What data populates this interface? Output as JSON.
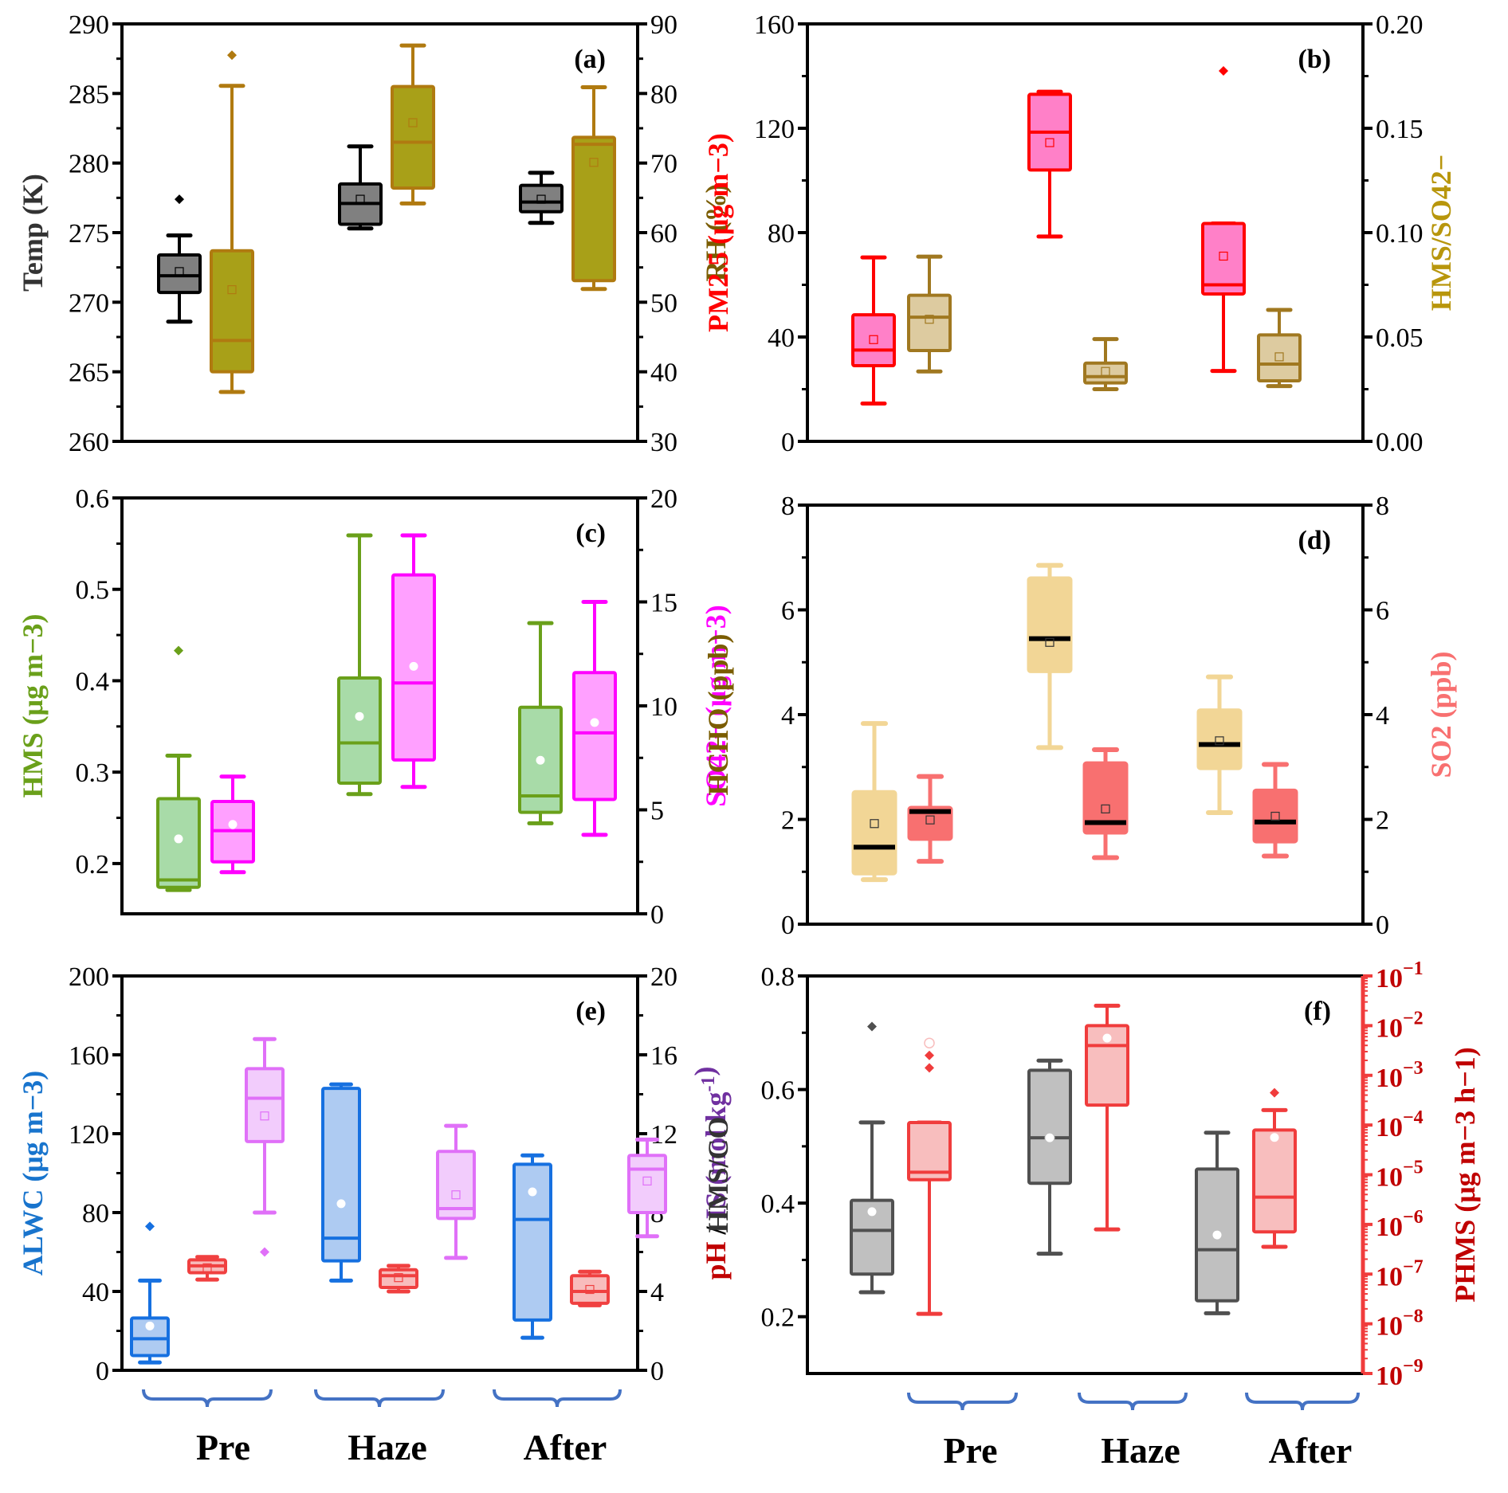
{
  "figure": {
    "group_labels": [
      "Pre",
      "Haze",
      "After"
    ],
    "brace_color": "#4472C4"
  },
  "chart_data": [
    {
      "id": "a",
      "panel_label": "(a)",
      "type": "box",
      "categories": [
        "Pre",
        "Haze",
        "After"
      ],
      "left_axis": {
        "title": "Temp (K)",
        "title_color": "#333333",
        "range": [
          260,
          290
        ],
        "ticks": [
          260,
          265,
          270,
          275,
          280,
          285,
          290
        ]
      },
      "right_axis": {
        "title": "RH (%)",
        "title_color": "#7A5C00",
        "range": [
          30,
          90
        ],
        "ticks": [
          30,
          40,
          50,
          60,
          70,
          80,
          90
        ]
      },
      "series": [
        {
          "name": "Temp",
          "axis": "left",
          "stroke": "#000000",
          "fill": "#808080",
          "mean_marker": "square",
          "boxes": [
            {
              "min": 268.6,
              "q1": 270.7,
              "median": 271.9,
              "q3": 273.4,
              "max": 274.8,
              "mean": 272.2,
              "outliers": [
                277.4
              ]
            },
            {
              "min": 275.3,
              "q1": 275.6,
              "median": 277.1,
              "q3": 278.5,
              "max": 281.2,
              "mean": 277.4,
              "outliers": []
            },
            {
              "min": 275.7,
              "q1": 276.5,
              "median": 277.2,
              "q3": 278.4,
              "max": 279.3,
              "mean": 277.4,
              "outliers": []
            }
          ]
        },
        {
          "name": "RH",
          "axis": "right",
          "stroke": "#B07A10",
          "fill": "#A8A018",
          "mean_marker": "square",
          "boxes": [
            {
              "min": 37.1,
              "q1": 40.0,
              "median": 44.5,
              "q3": 57.4,
              "max": 81.1,
              "mean": 51.8,
              "outliers": [
                85.5
              ]
            },
            {
              "min": 64.2,
              "q1": 66.4,
              "median": 73.0,
              "q3": 81.0,
              "max": 86.9,
              "mean": 75.8,
              "outliers": []
            },
            {
              "min": 51.9,
              "q1": 53.1,
              "median": 72.7,
              "q3": 73.7,
              "max": 80.9,
              "mean": 70.1,
              "outliers": []
            }
          ]
        }
      ]
    },
    {
      "id": "b",
      "panel_label": "(b)",
      "type": "box",
      "categories": [
        "Pre",
        "Haze",
        "After"
      ],
      "left_axis": {
        "title": "PM2.5 (μg m−3)",
        "title_color": "#FF0000",
        "range": [
          0,
          160
        ],
        "ticks": [
          0,
          40,
          80,
          120,
          160
        ]
      },
      "right_axis": {
        "title": "HMS/SO42−",
        "title_color": "#B8960C",
        "range": [
          0,
          0.2
        ],
        "ticks": [
          "0.00",
          "0.05",
          "0.10",
          "0.15",
          "0.20"
        ]
      },
      "series": [
        {
          "name": "PM2.5",
          "axis": "left",
          "stroke": "#FF0000",
          "fill": "#FF80C8",
          "mean_marker": "square",
          "boxes": [
            {
              "min": 14.5,
              "q1": 29.0,
              "median": 35.0,
              "q3": 48.5,
              "max": 70.5,
              "mean": 39.0,
              "outliers": []
            },
            {
              "min": 78.5,
              "q1": 104.0,
              "median": 118.5,
              "q3": 133.0,
              "max": 134.0,
              "mean": 114.5,
              "outliers": []
            },
            {
              "min": 27.0,
              "q1": 56.5,
              "median": 60.0,
              "q3": 83.5,
              "max": 83.5,
              "mean": 71.0,
              "outliers": [
                142.0
              ]
            }
          ]
        },
        {
          "name": "HMS/SO4",
          "axis": "right",
          "stroke": "#A07820",
          "fill": "#DDCBA0",
          "mean_marker": "square",
          "boxes": [
            {
              "min": 0.0335,
              "q1": 0.0435,
              "median": 0.0595,
              "q3": 0.07,
              "max": 0.0885,
              "mean": 0.0585,
              "outliers": []
            },
            {
              "min": 0.025,
              "q1": 0.028,
              "median": 0.031,
              "q3": 0.0375,
              "max": 0.049,
              "mean": 0.0335,
              "outliers": []
            },
            {
              "min": 0.0265,
              "q1": 0.029,
              "median": 0.037,
              "q3": 0.051,
              "max": 0.063,
              "mean": 0.0405,
              "outliers": []
            }
          ]
        }
      ]
    },
    {
      "id": "c",
      "panel_label": "(c)",
      "type": "box",
      "categories": [
        "Pre",
        "Haze",
        "After"
      ],
      "left_axis": {
        "title": "HMS (μg m−3)",
        "title_color": "#6AA01A",
        "range": [
          0.145,
          0.6
        ],
        "ticks": [
          "0.2",
          "0.3",
          "0.4",
          "0.5",
          "0.6"
        ]
      },
      "right_axis": {
        "title": "SO42− (μg m−3)",
        "title_color": "#FF00FF",
        "range": [
          0,
          20
        ],
        "ticks": [
          0,
          5,
          10,
          15,
          20
        ]
      },
      "series": [
        {
          "name": "HMS",
          "axis": "left",
          "stroke": "#6AA01A",
          "fill": "#A8DBA8",
          "mean_marker": "circle",
          "boxes": [
            {
              "min": 0.171,
              "q1": 0.174,
              "median": 0.182,
              "q3": 0.271,
              "max": 0.318,
              "mean": 0.227,
              "outliers": [
                0.433
              ]
            },
            {
              "min": 0.276,
              "q1": 0.288,
              "median": 0.332,
              "q3": 0.403,
              "max": 0.559,
              "mean": 0.361,
              "outliers": []
            },
            {
              "min": 0.244,
              "q1": 0.256,
              "median": 0.274,
              "q3": 0.371,
              "max": 0.463,
              "mean": 0.313,
              "outliers": []
            }
          ]
        },
        {
          "name": "SO4",
          "axis": "right",
          "stroke": "#FF00FF",
          "fill": "#FFA0FF",
          "mean_marker": "circle",
          "boxes": [
            {
              "min": 2.0,
              "q1": 2.5,
              "median": 4.0,
              "q3": 5.4,
              "max": 6.6,
              "mean": 4.3,
              "outliers": []
            },
            {
              "min": 6.1,
              "q1": 7.4,
              "median": 11.1,
              "q3": 16.3,
              "max": 18.2,
              "mean": 11.9,
              "outliers": []
            },
            {
              "min": 3.8,
              "q1": 5.5,
              "median": 8.7,
              "q3": 11.6,
              "max": 15.0,
              "mean": 9.2,
              "outliers": []
            }
          ]
        }
      ]
    },
    {
      "id": "d",
      "panel_label": "(d)",
      "type": "box",
      "categories": [
        "Pre",
        "Haze",
        "After"
      ],
      "left_axis": {
        "title": "HCHO (ppb)",
        "title_color": "#7A5C00",
        "range": [
          0,
          8
        ],
        "ticks": [
          0,
          2,
          4,
          6,
          8
        ]
      },
      "right_axis": {
        "title": "SO2 (ppb)",
        "title_color": "#F87070",
        "range": [
          0,
          8
        ],
        "ticks": [
          0,
          2,
          4,
          6,
          8
        ]
      },
      "series": [
        {
          "name": "HCHO",
          "axis": "left",
          "stroke": "#F2D696",
          "fill": "#F2D696",
          "median_color": "#000000",
          "mean_marker": "square",
          "boxes": [
            {
              "min": 0.85,
              "q1": 0.97,
              "median": 1.47,
              "q3": 2.52,
              "max": 3.83,
              "mean": 1.92,
              "outliers": []
            },
            {
              "min": 3.37,
              "q1": 4.83,
              "median": 5.45,
              "q3": 6.6,
              "max": 6.85,
              "mean": 5.38,
              "outliers": []
            },
            {
              "min": 2.13,
              "q1": 2.98,
              "median": 3.43,
              "q3": 4.08,
              "max": 4.72,
              "mean": 3.5,
              "outliers": []
            }
          ]
        },
        {
          "name": "SO2",
          "axis": "right",
          "stroke": "#F87070",
          "fill": "#F87070",
          "median_color": "#000000",
          "mean_marker": "square",
          "boxes": [
            {
              "min": 1.2,
              "q1": 1.63,
              "median": 2.15,
              "q3": 2.22,
              "max": 2.82,
              "mean": 1.99,
              "outliers": []
            },
            {
              "min": 1.27,
              "q1": 1.75,
              "median": 1.94,
              "q3": 3.07,
              "max": 3.33,
              "mean": 2.2,
              "outliers": []
            },
            {
              "min": 1.3,
              "q1": 1.58,
              "median": 1.95,
              "q3": 2.55,
              "max": 3.05,
              "mean": 2.06,
              "outliers": []
            }
          ]
        }
      ]
    },
    {
      "id": "e",
      "panel_label": "(e)",
      "type": "box",
      "categories": [
        "Pre",
        "Haze",
        "After"
      ],
      "left_axis": {
        "title": "ALWC (μg m−3)",
        "title_color": "#1874CD",
        "range": [
          0,
          200
        ],
        "ticks": [
          0,
          40,
          80,
          120,
          160,
          200
        ]
      },
      "right_axis": {
        "title": "pH / IS (mol kg-1)",
        "title_color": "#7030A0",
        "title_parts": [
          {
            "text": "pH",
            "color": "#C00000"
          },
          {
            "text": " / ",
            "color": "#000000"
          },
          {
            "text": "IS (mol kg",
            "color": "#7030A0"
          },
          {
            "text": "-1",
            "color": "#7030A0",
            "sup": true
          },
          {
            "text": ")",
            "color": "#7030A0"
          }
        ],
        "range": [
          0,
          20
        ],
        "ticks": [
          0,
          4,
          8,
          12,
          16,
          20
        ]
      },
      "series": [
        {
          "name": "ALWC",
          "axis": "left",
          "stroke": "#1670E0",
          "fill": "#AECBF2",
          "mean_marker": "circle",
          "boxes": [
            {
              "min": 4.0,
              "q1": 7.5,
              "median": 16.0,
              "q3": 26.5,
              "max": 45.5,
              "mean": 22.5,
              "outliers": [
                73.0
              ]
            },
            {
              "min": 45.5,
              "q1": 55.5,
              "median": 67.0,
              "q3": 143.0,
              "max": 145.0,
              "mean": 84.5,
              "outliers": []
            },
            {
              "min": 16.5,
              "q1": 25.5,
              "median": 76.5,
              "q3": 104.5,
              "max": 109.0,
              "mean": 90.5,
              "outliers": []
            }
          ]
        },
        {
          "name": "pH",
          "axis": "right",
          "stroke": "#F04040",
          "fill": "#F8BCBC",
          "mean_marker": "square",
          "boxes": [
            {
              "min": 4.6,
              "q1": 4.95,
              "median": 5.3,
              "q3": 5.6,
              "max": 5.75,
              "mean": 5.2,
              "outliers": []
            },
            {
              "min": 4.0,
              "q1": 4.2,
              "median": 4.8,
              "q3": 5.1,
              "max": 5.3,
              "mean": 4.7,
              "outliers": []
            },
            {
              "min": 3.3,
              "q1": 3.4,
              "median": 4.0,
              "q3": 4.8,
              "max": 5.0,
              "mean": 4.1,
              "outliers": []
            }
          ]
        },
        {
          "name": "IS",
          "axis": "right",
          "stroke": "#E070F8",
          "fill": "#F2CCFC",
          "mean_marker": "square",
          "boxes": [
            {
              "min": 8.0,
              "q1": 11.6,
              "median": 13.8,
              "q3": 15.3,
              "max": 16.8,
              "mean": 12.9,
              "outliers": [
                6.0
              ]
            },
            {
              "min": 5.7,
              "q1": 7.7,
              "median": 8.2,
              "q3": 11.1,
              "max": 12.4,
              "mean": 8.9,
              "outliers": []
            },
            {
              "min": 6.8,
              "q1": 8.0,
              "median": 10.2,
              "q3": 10.9,
              "max": 11.7,
              "mean": 9.6,
              "outliers": []
            }
          ]
        }
      ]
    },
    {
      "id": "f",
      "panel_label": "(f)",
      "type": "box",
      "categories": [
        "Pre",
        "Haze",
        "After"
      ],
      "left_axis": {
        "title": "HMS/CO",
        "title_color": "#333333",
        "range": [
          0.1,
          0.8
        ],
        "ticks": [
          "0.2",
          "0.4",
          "0.6",
          "0.8"
        ]
      },
      "right_axis": {
        "title": "PHMS (μg m−3 h−1)",
        "title_color": "#C00000",
        "scale": "log",
        "range_exp": [
          -9,
          -1
        ],
        "ticks": [
          "10^-9",
          "10^-8",
          "10^-7",
          "10^-6",
          "10^-5",
          "10^-4",
          "10^-3",
          "10^-2",
          "10^-1"
        ],
        "tick_color": "#C00000"
      },
      "series": [
        {
          "name": "HMS/CO",
          "axis": "left",
          "stroke": "#505050",
          "fill": "#C0C0C0",
          "mean_marker": "circle",
          "boxes": [
            {
              "min": 0.243,
              "q1": 0.275,
              "median": 0.352,
              "q3": 0.405,
              "max": 0.542,
              "mean": 0.385,
              "outliers": [
                0.711
              ]
            },
            {
              "min": 0.311,
              "q1": 0.435,
              "median": 0.515,
              "q3": 0.634,
              "max": 0.651,
              "mean": 0.515,
              "outliers": []
            },
            {
              "min": 0.206,
              "q1": 0.228,
              "median": 0.318,
              "q3": 0.46,
              "max": 0.524,
              "mean": 0.344,
              "outliers": []
            }
          ]
        },
        {
          "name": "PHMS",
          "axis": "right",
          "stroke": "#F03C3C",
          "fill": "#F8BEBE",
          "mean_marker": "circle",
          "log": true,
          "boxes_exp": [
            {
              "min": -7.8,
              "q1": -5.1,
              "median": -4.95,
              "q3": -3.95,
              "max": -5.1,
              "mean": -3.35,
              "outliers": [
                -2.6,
                -2.85
              ],
              "mean_hollow": true
            },
            {
              "min": -6.1,
              "q1": -3.6,
              "median": -2.4,
              "q3": -2.0,
              "max": -1.6,
              "mean": -2.25,
              "outliers": []
            },
            {
              "min": -6.45,
              "q1": -6.15,
              "median": -5.45,
              "q3": -4.1,
              "max": -3.7,
              "mean": -4.25,
              "outliers": [
                -3.35
              ]
            }
          ]
        }
      ]
    }
  ]
}
